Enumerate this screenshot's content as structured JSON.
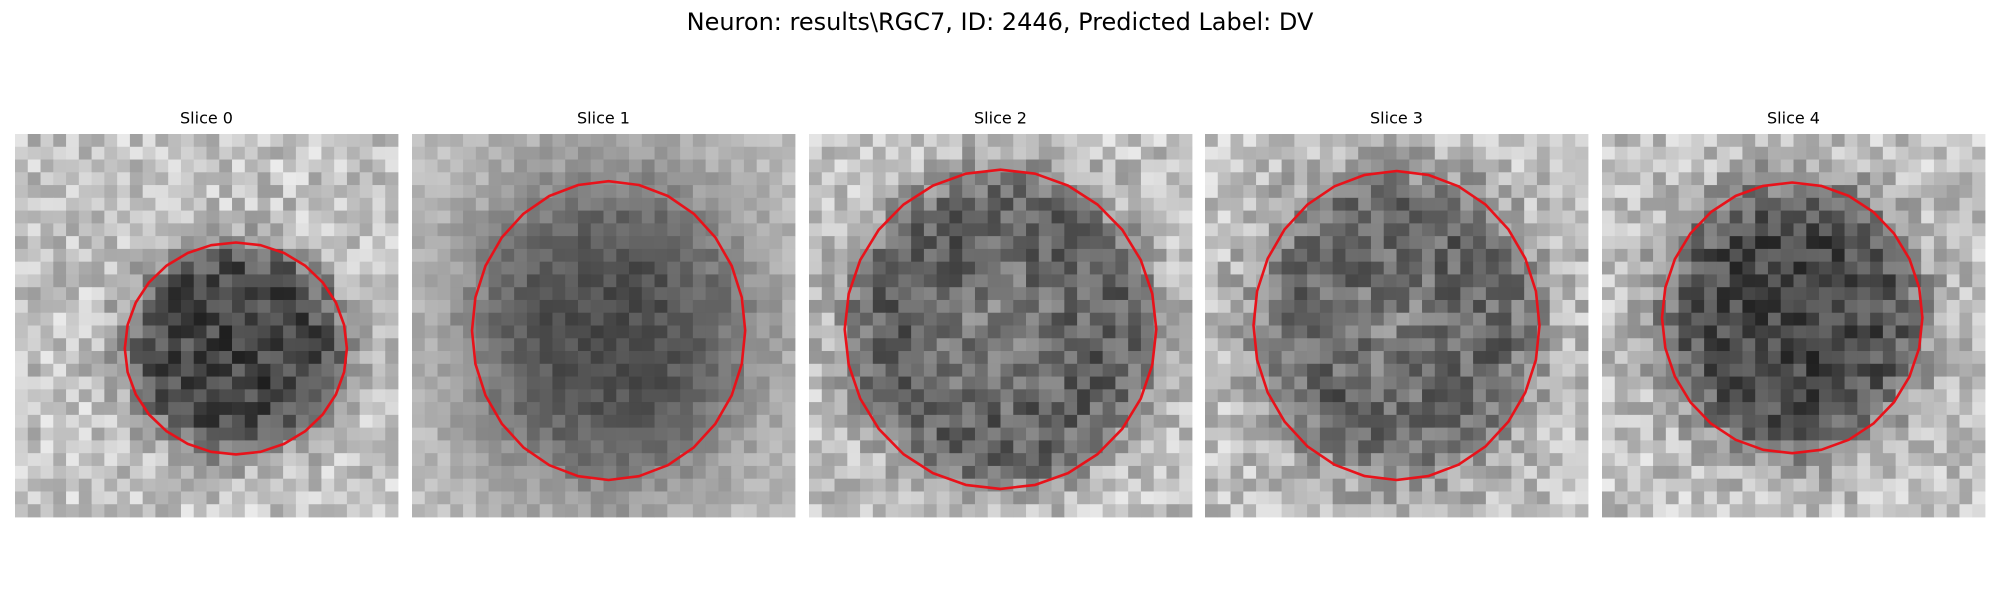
{
  "header": {
    "title": "Neuron: results\\RGC7, ID: 2446, Predicted Label: DV"
  },
  "slices": [
    {
      "title": "Slice 0"
    },
    {
      "title": "Slice 1"
    },
    {
      "title": "Slice 2"
    },
    {
      "title": "Slice 3"
    },
    {
      "title": "Slice 4"
    }
  ]
}
